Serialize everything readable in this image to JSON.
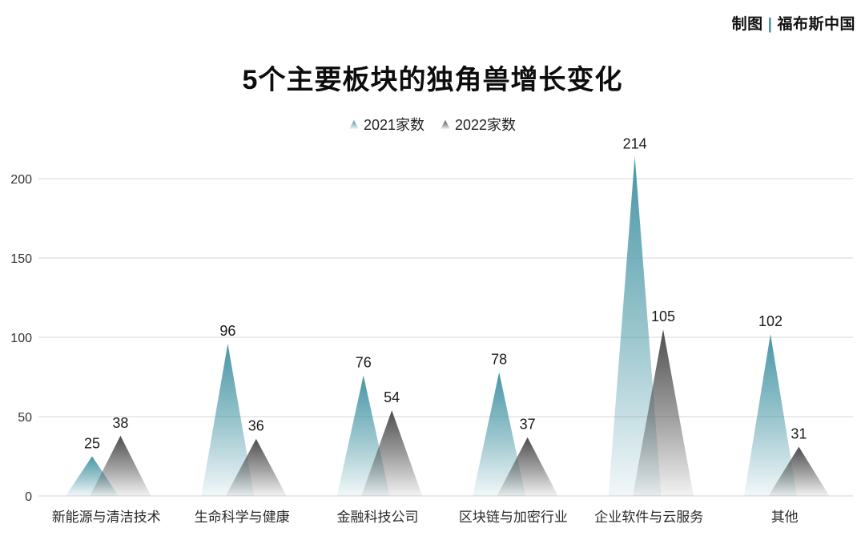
{
  "credit": {
    "prefix": "制图",
    "divider": "|",
    "brand": "福布斯中国",
    "divider_color": "#3f93a2",
    "text_color": "#121212"
  },
  "chart_data": {
    "type": "bar",
    "variant": "gradient-triangle-peaks",
    "title": "5个主要板块的独角兽增长变化",
    "categories": [
      "新能源与清洁技术",
      "生命科学与健康",
      "金融科技公司",
      "区块链与加密行业",
      "企业软件与云服务",
      "其他"
    ],
    "series": [
      {
        "name": "2021家数",
        "values": [
          25,
          96,
          76,
          78,
          214,
          102
        ],
        "color": "#4796a5"
      },
      {
        "name": "2022家数",
        "values": [
          38,
          36,
          54,
          37,
          105,
          31
        ],
        "color": "#4e4e4e"
      }
    ],
    "y_ticks": [
      0,
      50,
      100,
      150,
      200
    ],
    "ylim": [
      0,
      220
    ],
    "grid": true,
    "gridline_color": "#e3e3e3",
    "tick_label_color": "#333333",
    "value_label_color": "#1a1a1a",
    "category_label_color": "#2b2b2b",
    "legend_position": "top-center",
    "xlabel": "",
    "ylabel": ""
  }
}
